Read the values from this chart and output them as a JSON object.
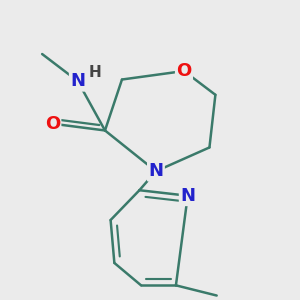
{
  "bg_color": "#ebebeb",
  "bond_color": "#3a7a6a",
  "bond_width": 1.8,
  "atom_colors": {
    "O": "#ee1111",
    "N": "#2222cc",
    "C": "#000000",
    "H": "#444444"
  },
  "font_size": 12,
  "fig_size": [
    3.0,
    3.0
  ],
  "dpi": 100
}
